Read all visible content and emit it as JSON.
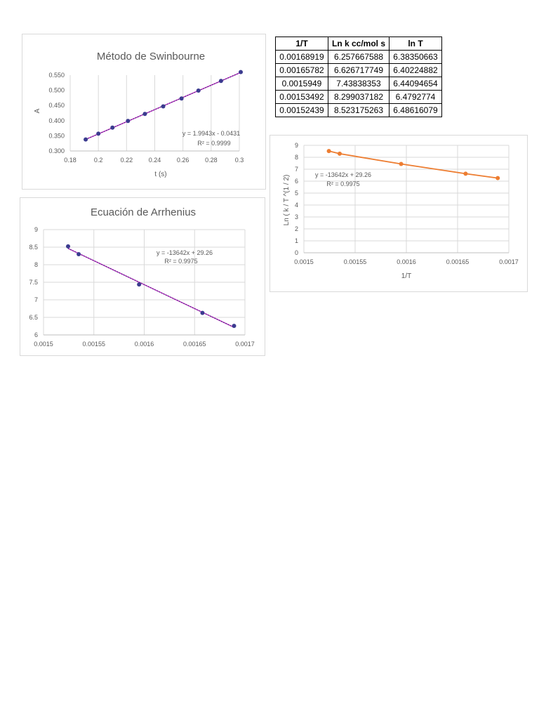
{
  "table": {
    "headers": [
      "1/T",
      "Ln k cc/mol s",
      "ln T"
    ],
    "rows": [
      [
        "0.00168919",
        "6.257667588",
        "6.38350663"
      ],
      [
        "0.00165782",
        "6.626717749",
        "6.40224882"
      ],
      [
        "0.0015949",
        "7.43838353",
        "6.44094654"
      ],
      [
        "0.00153492",
        "8.299037182",
        "6.4792774"
      ],
      [
        "0.00152439",
        "8.523175263",
        "6.48616079"
      ]
    ]
  },
  "chart_data": [
    {
      "id": "swinbourne",
      "type": "scatter",
      "title": "Método de Swinbourne",
      "xlabel": "t (s)",
      "ylabel": "A",
      "xlim": [
        0.18,
        0.3
      ],
      "ylim": [
        0.3,
        0.55
      ],
      "xticks": [
        "0.18",
        "0.2",
        "0.22",
        "0.24",
        "0.26",
        "0.28",
        "0.3"
      ],
      "yticks": [
        "0.300",
        "0.350",
        "0.400",
        "0.450",
        "0.500",
        "0.550"
      ],
      "grid": "vertical",
      "marker_color": "#3b3b8f",
      "trend_color": "#cc33cc",
      "equation": "y = 1.9943x - 0.0431",
      "r2": "R² = 0.9999",
      "x": [
        0.191,
        0.2,
        0.21,
        0.221,
        0.233,
        0.246,
        0.259,
        0.271,
        0.287,
        0.301
      ],
      "y": [
        0.338,
        0.357,
        0.377,
        0.399,
        0.422,
        0.447,
        0.473,
        0.499,
        0.531,
        0.56
      ]
    },
    {
      "id": "arrhenius",
      "type": "scatter",
      "title": "Ecuación de Arrhenius",
      "xlabel": "",
      "ylabel": "",
      "xlim": [
        0.0015,
        0.0017
      ],
      "ylim": [
        6,
        9
      ],
      "xticks": [
        "0.0015",
        "0.00155",
        "0.0016",
        "0.00165",
        "0.0017"
      ],
      "yticks": [
        "6",
        "6.5",
        "7",
        "7.5",
        "8",
        "8.5",
        "9"
      ],
      "grid": "both",
      "marker_color": "#3b3b8f",
      "trend_color": "#cc33cc",
      "equation": "y = -13642x + 29.26",
      "r2": "R² = 0.9975",
      "x": [
        0.00152439,
        0.00153492,
        0.0015949,
        0.00165782,
        0.00168919
      ],
      "y": [
        8.523175263,
        8.299037182,
        7.43838353,
        6.626717749,
        6.257667588
      ]
    },
    {
      "id": "ln-k-over-t",
      "type": "line",
      "title": "",
      "xlabel": "1/T",
      "ylabel": "Ln ( k / T ^(1 / 2)",
      "xlim": [
        0.0015,
        0.0017
      ],
      "ylim": [
        0,
        9
      ],
      "xticks": [
        "0.0015",
        "0.00155",
        "0.0016",
        "0.00165",
        "0.0017"
      ],
      "yticks": [
        "0",
        "1",
        "2",
        "3",
        "4",
        "5",
        "6",
        "7",
        "8",
        "9"
      ],
      "grid": "both",
      "marker_color": "#ed7d31",
      "trend_color": "#ed7d31",
      "equation": "y = -13642x + 29.26",
      "r2": "R² = 0.9975",
      "x": [
        0.00152439,
        0.00153492,
        0.0015949,
        0.00165782,
        0.00168919
      ],
      "y": [
        8.523175263,
        8.299037182,
        7.43838353,
        6.626717749,
        6.257667588
      ]
    }
  ]
}
